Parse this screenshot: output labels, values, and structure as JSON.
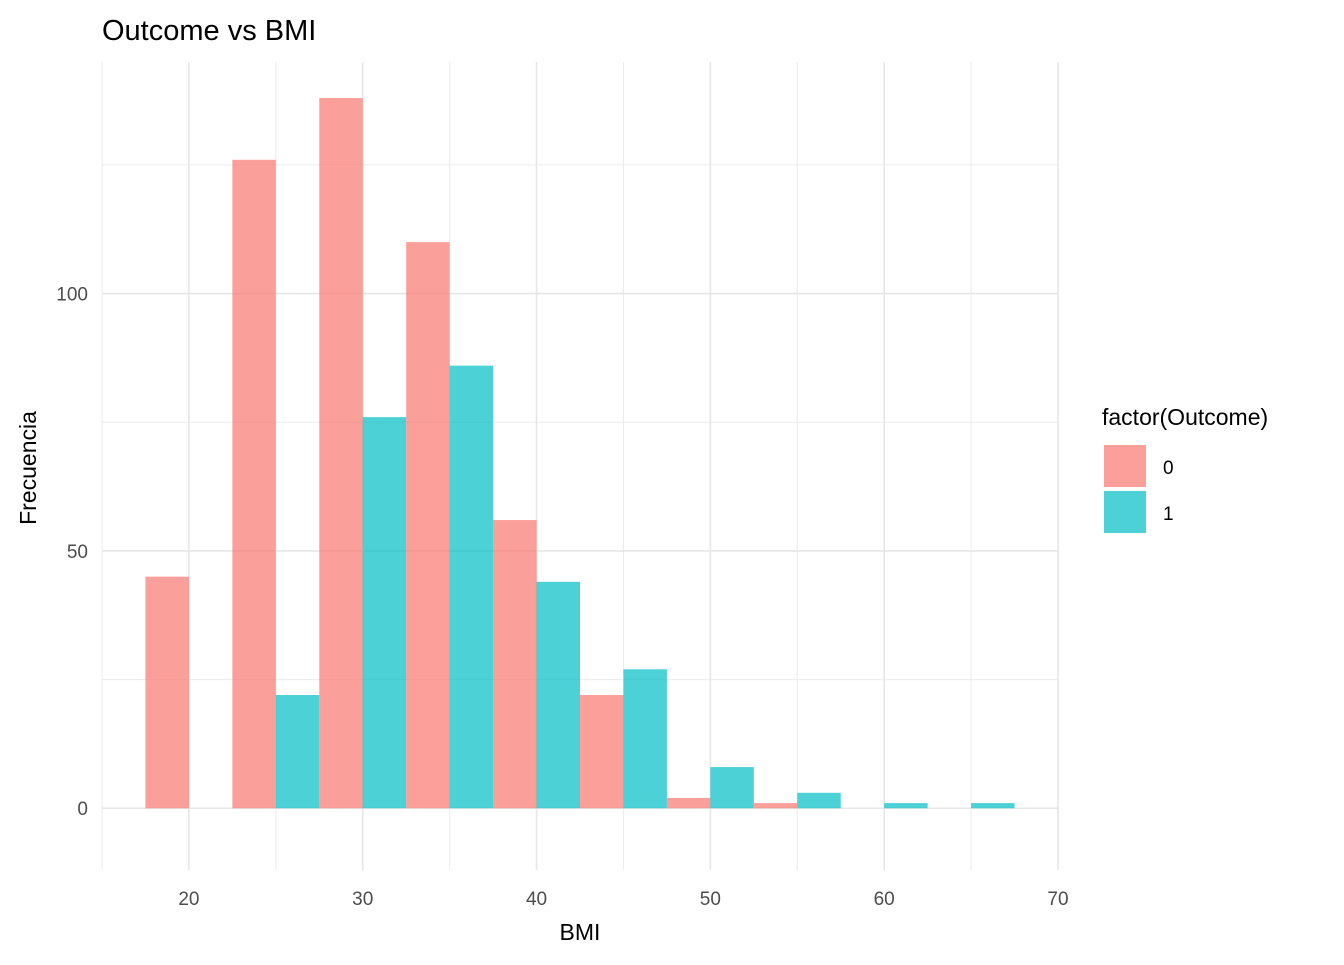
{
  "chart_data": {
    "type": "bar",
    "title": "Outcome vs BMI",
    "xlabel": "BMI",
    "ylabel": "Frecuencia",
    "xlim": [
      15,
      70
    ],
    "ylim": [
      -12,
      145
    ],
    "x_ticks": [
      20,
      30,
      40,
      50,
      60,
      70
    ],
    "y_ticks": [
      0,
      50,
      100
    ],
    "bin_width": 5,
    "grid": true,
    "legend": {
      "title": "factor(Outcome)",
      "position": "right"
    },
    "categories": [
      20,
      25,
      30,
      35,
      40,
      45,
      50,
      55,
      60,
      65
    ],
    "series": [
      {
        "name": "0",
        "color": "#F8766D",
        "values": [
          45,
          126,
          138,
          110,
          56,
          22,
          2,
          1,
          0,
          0
        ]
      },
      {
        "name": "1",
        "color": "#00BFC4",
        "values": [
          0,
          22,
          76,
          86,
          44,
          27,
          8,
          3,
          1,
          1
        ]
      }
    ]
  }
}
